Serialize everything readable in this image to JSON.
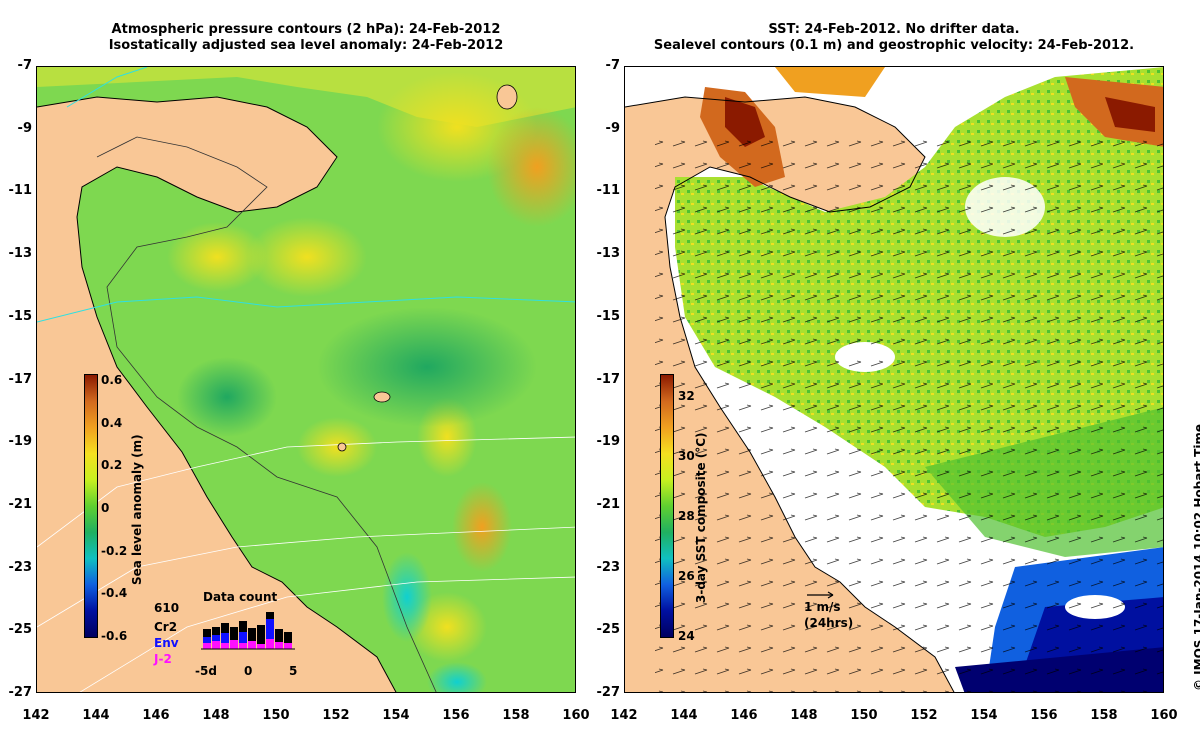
{
  "titles": {
    "left_line1": "Atmospheric pressure contours (2 hPa): 24-Feb-2012",
    "left_line2": "Isostatically adjusted sea level anomaly: 24-Feb-2012",
    "right_line1": "SST: 24-Feb-2012. No drifter data.",
    "right_line2": "Sealevel contours (0.1 m) and geostrophic velocity: 24-Feb-2012."
  },
  "axes": {
    "lat_ticks": [
      "-7",
      "-9",
      "-11",
      "-13",
      "-15",
      "-17",
      "-19",
      "-21",
      "-23",
      "-25",
      "-27"
    ],
    "lon_ticks": [
      "142",
      "144",
      "146",
      "148",
      "150",
      "152",
      "154",
      "156",
      "158",
      "160"
    ],
    "lat_range": [
      -27,
      -7
    ],
    "lon_range": [
      142,
      160
    ]
  },
  "left_colorbar": {
    "title": "Sea level anomaly (m)",
    "labels": [
      "0.6",
      "0.4",
      "0.2",
      "0",
      "-0.2",
      "-0.4",
      "-0.6"
    ],
    "range": [
      -0.6,
      0.6
    ],
    "colors": [
      "#8b1a00",
      "#d2691e",
      "#f0a020",
      "#f5e020",
      "#c8f020",
      "#60d030",
      "#20b060",
      "#10c0c0",
      "#1060e0",
      "#0010a0",
      "#000060"
    ]
  },
  "right_colorbar": {
    "title": "3-day SST composite (°C)",
    "labels": [
      "32",
      "30",
      "28",
      "26",
      "24"
    ],
    "range": [
      24,
      33
    ],
    "colors": [
      "#8b1a00",
      "#d2691e",
      "#f0a020",
      "#f5e020",
      "#c8f020",
      "#60d030",
      "#20b060",
      "#10c0c0",
      "#1060e0",
      "#0010a0",
      "#000060"
    ]
  },
  "data_count": {
    "title": "Data count",
    "max": "610",
    "sat1": "Cr2",
    "sat2": "Env",
    "sat3": "J-2",
    "axis_labels": [
      "-5d",
      "0",
      "5"
    ],
    "colors": {
      "Cr2": "#000000",
      "Env": "#1010ff",
      "J-2": "#ff10ff"
    }
  },
  "vector_scale": {
    "label1": "1 m/s",
    "label2": "(24hrs)"
  },
  "credit": "© IMOS 17-Jan-2014 10:02 Hobart Time",
  "colors": {
    "land": "#f9c796",
    "ocean_green": "#40c040",
    "white_cloud": "#ffffff"
  }
}
